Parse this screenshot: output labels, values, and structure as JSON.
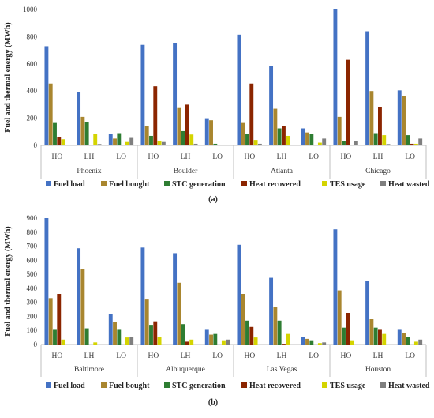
{
  "chart_data": [
    {
      "type": "bar",
      "panel_label": "(a)",
      "ylabel": "Fuel and thermal energy (MWh)",
      "ylim": [
        0,
        1000
      ],
      "yticks": [
        0,
        200,
        400,
        600,
        800,
        1000
      ],
      "ytick_labels": [
        "0",
        "200",
        "400",
        "600",
        "800",
        "1000"
      ],
      "groups": [
        "Phoenix",
        "Boulder",
        "Atlanta",
        "Chicago"
      ],
      "subcategories": [
        "HO",
        "LH",
        "LO"
      ],
      "legend_position": "bottom",
      "series": [
        {
          "name": "Fuel load",
          "color": "#4472C4",
          "values": [
            [
              730,
              395,
              85
            ],
            [
              740,
              755,
              200
            ],
            [
              815,
              585,
              125
            ],
            [
              1000,
              840,
              405
            ]
          ]
        },
        {
          "name": "Fuel bought",
          "color": "#A9862F",
          "values": [
            [
              455,
              210,
              50
            ],
            [
              140,
              275,
              185
            ],
            [
              165,
              270,
              95
            ],
            [
              210,
              400,
              365
            ]
          ]
        },
        {
          "name": "STC generation",
          "color": "#2E7D32",
          "values": [
            [
              165,
              170,
              90
            ],
            [
              70,
              105,
              12
            ],
            [
              85,
              125,
              85
            ],
            [
              30,
              90,
              75
            ]
          ]
        },
        {
          "name": "Heat recovered",
          "color": "#8B2500",
          "values": [
            [
              60,
              0,
              0
            ],
            [
              435,
              300,
              0
            ],
            [
              455,
              140,
              0
            ],
            [
              630,
              280,
              12
            ]
          ]
        },
        {
          "name": "TES usage",
          "color": "#D4D400",
          "values": [
            [
              45,
              85,
              25
            ],
            [
              35,
              80,
              5
            ],
            [
              40,
              70,
              20
            ],
            [
              0,
              75,
              12
            ]
          ]
        },
        {
          "name": "Heat wasted",
          "color": "#7F7F7F",
          "values": [
            [
              0,
              10,
              55
            ],
            [
              25,
              12,
              0
            ],
            [
              12,
              0,
              50
            ],
            [
              30,
              10,
              50
            ]
          ]
        }
      ]
    },
    {
      "type": "bar",
      "panel_label": "(b)",
      "ylabel": "Fuel and thermal energy (MWh)",
      "ylim": [
        0,
        900
      ],
      "yticks": [
        0,
        100,
        200,
        300,
        400,
        500,
        600,
        700,
        800,
        900
      ],
      "ytick_labels": [
        "0",
        "100",
        "200",
        "300",
        "400",
        "500",
        "600",
        "700",
        "800",
        "900"
      ],
      "groups": [
        "Baltimore",
        "Albuquerque",
        "Las Vegas",
        "Houston"
      ],
      "subcategories": [
        "HO",
        "LH",
        "LO"
      ],
      "legend_position": "bottom",
      "series": [
        {
          "name": "Fuel load",
          "color": "#4472C4",
          "values": [
            [
              900,
              685,
              215
            ],
            [
              690,
              650,
              110
            ],
            [
              710,
              475,
              55
            ],
            [
              820,
              450,
              110
            ]
          ]
        },
        {
          "name": "Fuel bought",
          "color": "#A9862F",
          "values": [
            [
              330,
              540,
              160
            ],
            [
              320,
              440,
              70
            ],
            [
              360,
              270,
              40
            ],
            [
              385,
              180,
              80
            ]
          ]
        },
        {
          "name": "STC generation",
          "color": "#2E7D32",
          "values": [
            [
              110,
              115,
              110
            ],
            [
              140,
              145,
              75
            ],
            [
              170,
              170,
              30
            ],
            [
              120,
              120,
              55
            ]
          ]
        },
        {
          "name": "Heat recovered",
          "color": "#8B2500",
          "values": [
            [
              360,
              0,
              0
            ],
            [
              165,
              20,
              0
            ],
            [
              125,
              5,
              0
            ],
            [
              225,
              110,
              0
            ]
          ]
        },
        {
          "name": "TES usage",
          "color": "#D4D400",
          "values": [
            [
              35,
              15,
              50
            ],
            [
              55,
              35,
              30
            ],
            [
              50,
              75,
              10
            ],
            [
              30,
              75,
              20
            ]
          ]
        },
        {
          "name": "Heat wasted",
          "color": "#7F7F7F",
          "values": [
            [
              0,
              0,
              55
            ],
            [
              0,
              0,
              35
            ],
            [
              0,
              0,
              15
            ],
            [
              0,
              0,
              35
            ]
          ]
        }
      ]
    }
  ]
}
